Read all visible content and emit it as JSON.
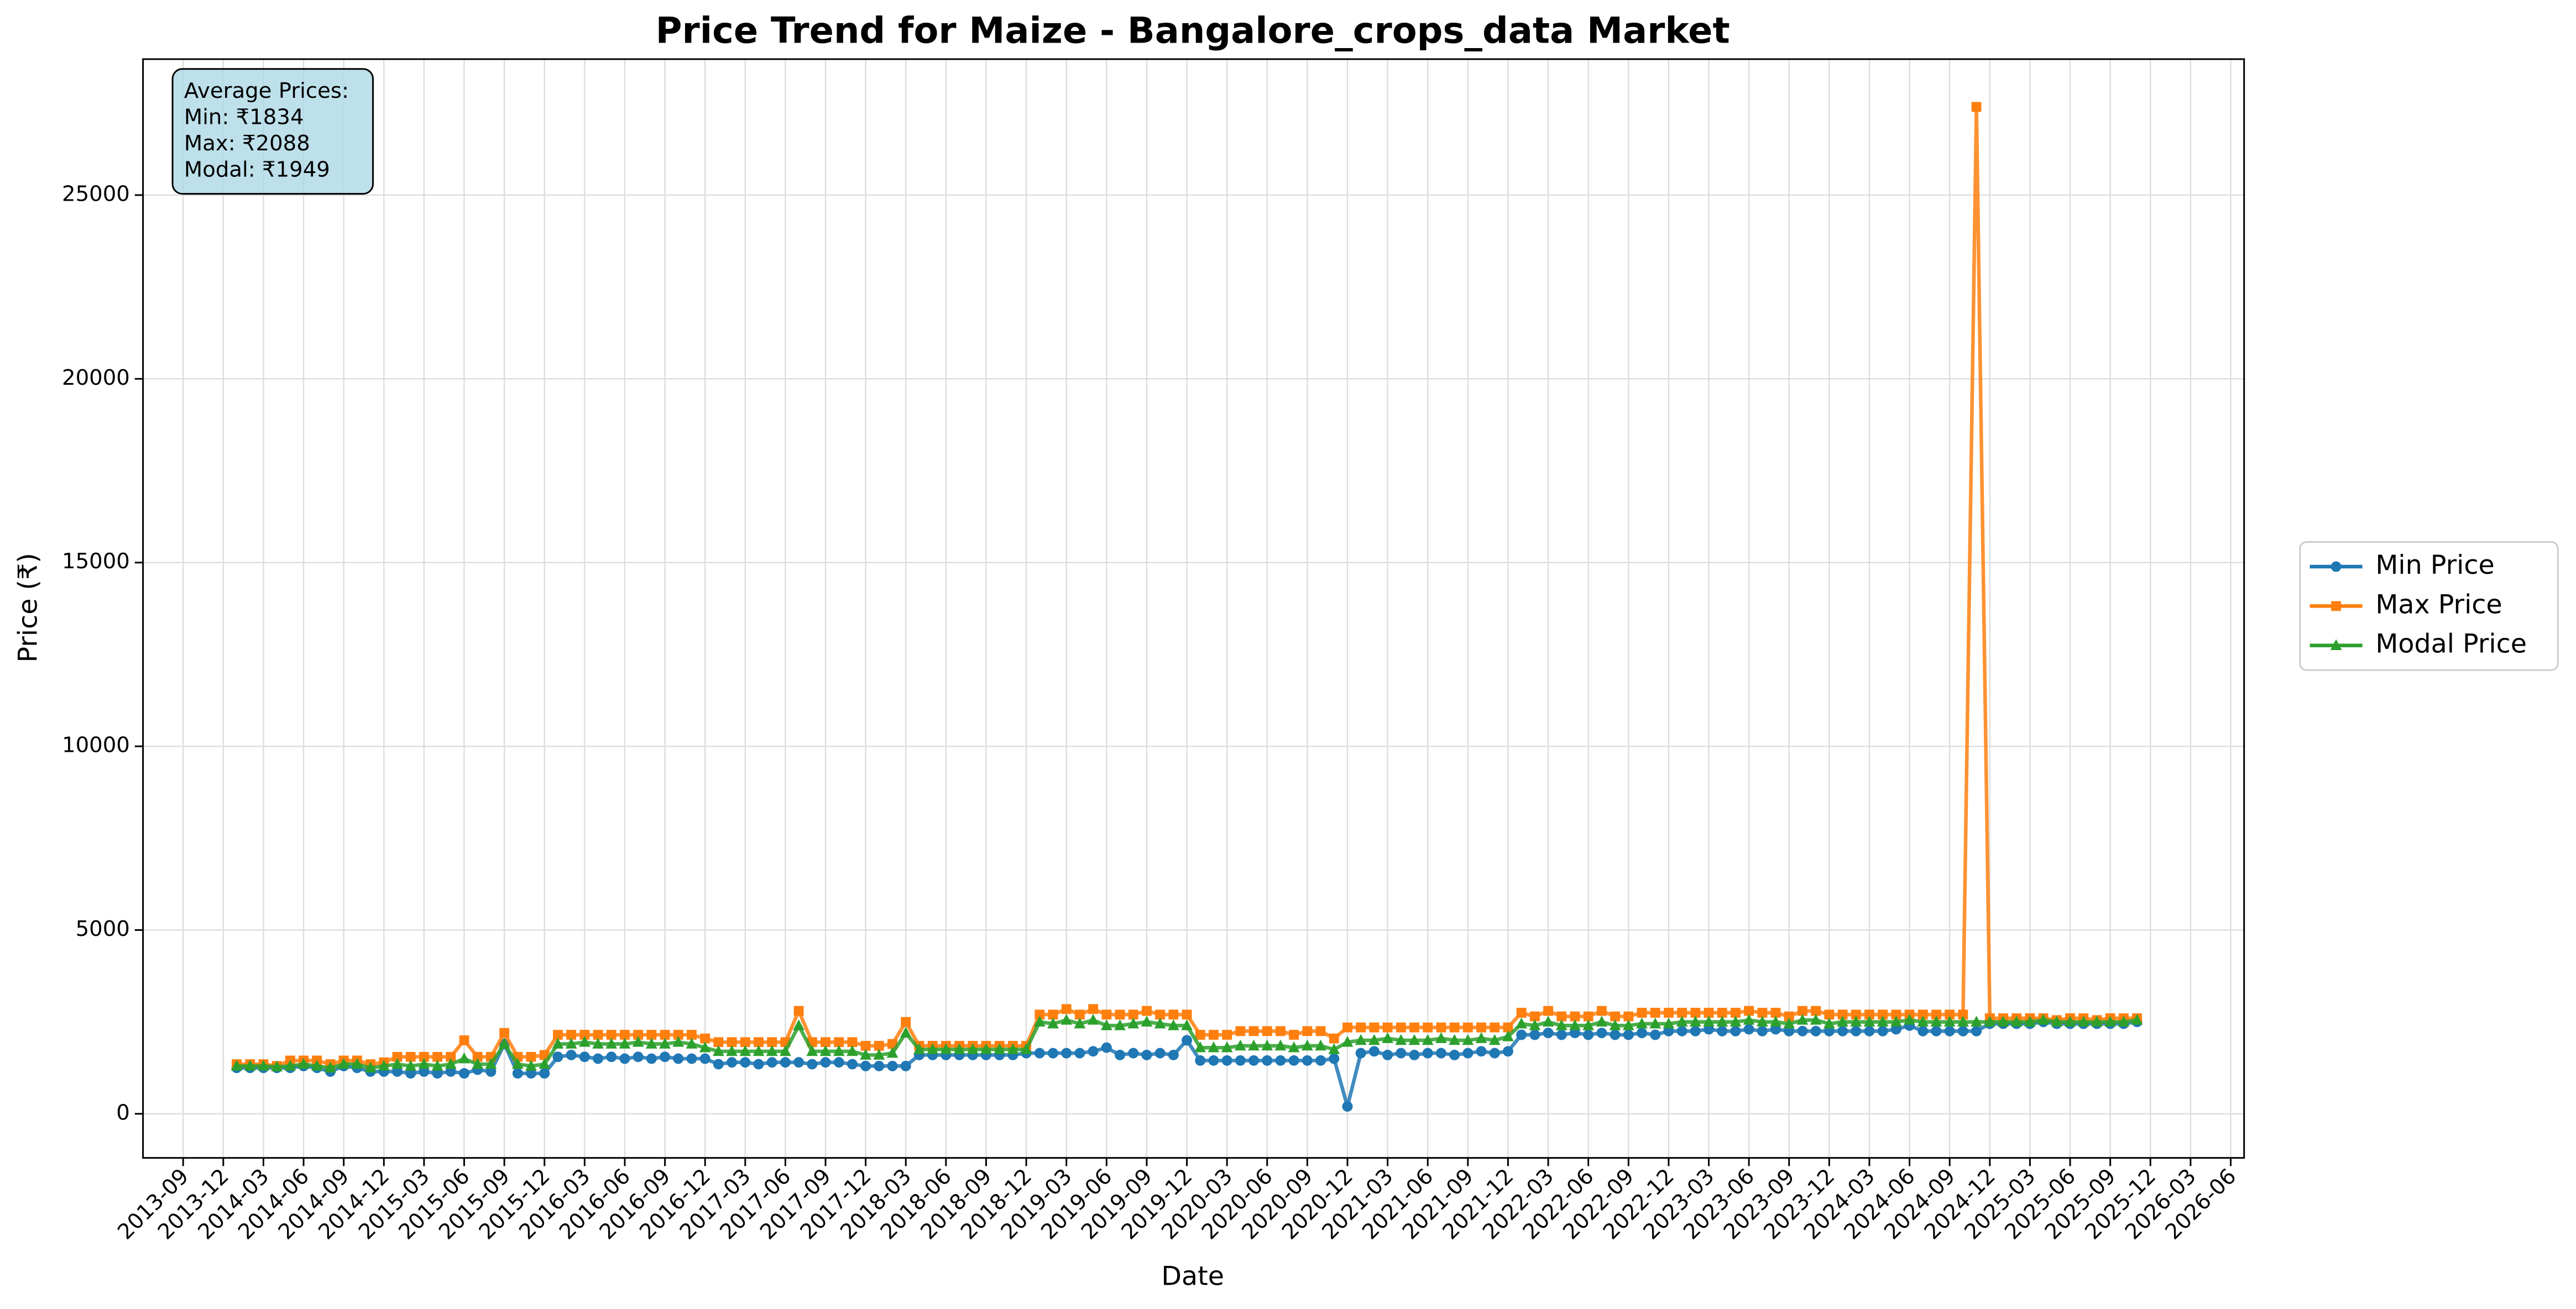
{
  "chart_data": {
    "type": "line",
    "title": "Price Trend for Maize - Bangalore_crops_data Market",
    "xlabel": "Date",
    "ylabel": "Price (₹)",
    "annotation": [
      "Average Prices:",
      "Min: ₹1834",
      "Max: ₹2088",
      "Modal: ₹1949"
    ],
    "legend": "outside right",
    "grid": true,
    "x": [
      "2014-01",
      "2014-02",
      "2014-03",
      "2014-04",
      "2014-05",
      "2014-06",
      "2014-07",
      "2014-08",
      "2014-09",
      "2014-10",
      "2014-11",
      "2014-12",
      "2015-01",
      "2015-02",
      "2015-03",
      "2015-04",
      "2015-05",
      "2015-06",
      "2015-07",
      "2015-08",
      "2015-09",
      "2015-10",
      "2015-11",
      "2015-12",
      "2016-01",
      "2016-02",
      "2016-03",
      "2016-04",
      "2016-05",
      "2016-06",
      "2016-07",
      "2016-08",
      "2016-09",
      "2016-10",
      "2016-11",
      "2016-12",
      "2017-01",
      "2017-02",
      "2017-03",
      "2017-04",
      "2017-05",
      "2017-06",
      "2017-07",
      "2017-08",
      "2017-09",
      "2017-10",
      "2017-11",
      "2017-12",
      "2018-01",
      "2018-02",
      "2018-03",
      "2018-04",
      "2018-05",
      "2018-06",
      "2018-07",
      "2018-08",
      "2018-09",
      "2018-10",
      "2018-11",
      "2018-12",
      "2019-01",
      "2019-02",
      "2019-03",
      "2019-04",
      "2019-05",
      "2019-06",
      "2019-07",
      "2019-08",
      "2019-09",
      "2019-10",
      "2019-11",
      "2019-12",
      "2020-01",
      "2020-02",
      "2020-03",
      "2020-04",
      "2020-05",
      "2020-06",
      "2020-07",
      "2020-08",
      "2020-09",
      "2020-10",
      "2020-11",
      "2020-12",
      "2021-01",
      "2021-02",
      "2021-03",
      "2021-04",
      "2021-05",
      "2021-06",
      "2021-07",
      "2021-08",
      "2021-09",
      "2021-10",
      "2021-11",
      "2021-12",
      "2022-01",
      "2022-02",
      "2022-03",
      "2022-04",
      "2022-05",
      "2022-06",
      "2022-07",
      "2022-08",
      "2022-09",
      "2022-10",
      "2022-11",
      "2022-12",
      "2023-01",
      "2023-02",
      "2023-03",
      "2023-04",
      "2023-05",
      "2023-06",
      "2023-07",
      "2023-08",
      "2023-09",
      "2023-10",
      "2023-11",
      "2023-12",
      "2024-01",
      "2024-02",
      "2024-03",
      "2024-04",
      "2024-05",
      "2024-06",
      "2024-07",
      "2024-08",
      "2024-09",
      "2024-10",
      "2024-11",
      "2024-12",
      "2025-01",
      "2025-02",
      "2025-03",
      "2025-04",
      "2025-05",
      "2025-06",
      "2025-07",
      "2025-08",
      "2025-09",
      "2025-10",
      "2025-11"
    ],
    "series": [
      {
        "name": "Min Price",
        "color": "#1f77b4",
        "marker": "circle",
        "values": [
          1250,
          1250,
          1250,
          1250,
          1250,
          1300,
          1250,
          1150,
          1300,
          1250,
          1150,
          1150,
          1150,
          1100,
          1150,
          1100,
          1150,
          1100,
          1200,
          1150,
          1900,
          1100,
          1100,
          1100,
          1550,
          1600,
          1550,
          1500,
          1550,
          1500,
          1550,
          1500,
          1550,
          1500,
          1500,
          1500,
          1350,
          1400,
          1400,
          1350,
          1400,
          1400,
          1400,
          1350,
          1400,
          1400,
          1350,
          1300,
          1300,
          1300,
          1300,
          1600,
          1600,
          1600,
          1600,
          1600,
          1600,
          1600,
          1600,
          1650,
          1650,
          1650,
          1650,
          1650,
          1700,
          1800,
          1600,
          1650,
          1600,
          1650,
          1600,
          2000,
          1450,
          1450,
          1450,
          1450,
          1450,
          1450,
          1450,
          1450,
          1450,
          1450,
          1500,
          200,
          1650,
          1700,
          1600,
          1650,
          1600,
          1650,
          1650,
          1600,
          1650,
          1700,
          1650,
          1700,
          2150,
          2150,
          2200,
          2150,
          2200,
          2150,
          2200,
          2150,
          2150,
          2200,
          2150,
          2250,
          2250,
          2250,
          2300,
          2250,
          2250,
          2300,
          2250,
          2300,
          2250,
          2250,
          2250,
          2250,
          2250,
          2250,
          2250,
          2250,
          2300,
          2400,
          2250,
          2250,
          2250,
          2250,
          2250,
          2450,
          2450,
          2450,
          2450,
          2500,
          2450,
          2450,
          2450,
          2450,
          2450,
          2450,
          2500
        ]
      },
      {
        "name": "Max Price",
        "color": "#ff7f0e",
        "marker": "square",
        "values": [
          1350,
          1350,
          1350,
          1300,
          1450,
          1450,
          1450,
          1350,
          1450,
          1450,
          1350,
          1400,
          1550,
          1550,
          1550,
          1550,
          1550,
          2000,
          1550,
          1550,
          2200,
          1550,
          1550,
          1600,
          2150,
          2150,
          2150,
          2150,
          2150,
          2150,
          2150,
          2150,
          2150,
          2150,
          2150,
          2050,
          1950,
          1950,
          1950,
          1950,
          1950,
          1950,
          2800,
          1950,
          1950,
          1950,
          1950,
          1850,
          1850,
          1900,
          2500,
          1850,
          1850,
          1850,
          1850,
          1850,
          1850,
          1850,
          1850,
          1850,
          2700,
          2700,
          2850,
          2700,
          2850,
          2700,
          2700,
          2700,
          2800,
          2700,
          2700,
          2700,
          2150,
          2150,
          2150,
          2250,
          2250,
          2250,
          2250,
          2150,
          2250,
          2250,
          2050,
          2350,
          2350,
          2350,
          2350,
          2350,
          2350,
          2350,
          2350,
          2350,
          2350,
          2350,
          2350,
          2350,
          2750,
          2650,
          2800,
          2650,
          2650,
          2650,
          2800,
          2650,
          2650,
          2750,
          2750,
          2750,
          2750,
          2750,
          2750,
          2750,
          2750,
          2800,
          2750,
          2750,
          2650,
          2800,
          2800,
          2700,
          2700,
          2700,
          2700,
          2700,
          2700,
          2700,
          2700,
          2700,
          2700,
          2700,
          27400,
          2600,
          2600,
          2600,
          2600,
          2600,
          2550,
          2600,
          2600,
          2550,
          2600,
          2600,
          2600
        ]
      },
      {
        "name": "Modal Price",
        "color": "#2ca02c",
        "marker": "triangle",
        "values": [
          1300,
          1300,
          1300,
          1280,
          1300,
          1350,
          1300,
          1250,
          1350,
          1350,
          1250,
          1300,
          1350,
          1300,
          1350,
          1300,
          1350,
          1500,
          1350,
          1350,
          1900,
          1350,
          1300,
          1350,
          1900,
          1900,
          1950,
          1900,
          1900,
          1900,
          1950,
          1900,
          1900,
          1950,
          1900,
          1800,
          1700,
          1700,
          1700,
          1700,
          1700,
          1700,
          2400,
          1700,
          1700,
          1700,
          1700,
          1600,
          1600,
          1650,
          2200,
          1750,
          1750,
          1750,
          1750,
          1750,
          1750,
          1750,
          1750,
          1750,
          2500,
          2450,
          2550,
          2450,
          2550,
          2400,
          2400,
          2450,
          2500,
          2450,
          2400,
          2400,
          1800,
          1800,
          1800,
          1850,
          1850,
          1850,
          1850,
          1800,
          1850,
          1850,
          1750,
          1950,
          2000,
          2000,
          2050,
          2000,
          2000,
          2000,
          2050,
          2000,
          2000,
          2050,
          2000,
          2100,
          2450,
          2400,
          2500,
          2400,
          2400,
          2400,
          2500,
          2400,
          2400,
          2450,
          2450,
          2450,
          2500,
          2500,
          2500,
          2500,
          2500,
          2550,
          2500,
          2500,
          2450,
          2550,
          2550,
          2450,
          2500,
          2500,
          2500,
          2500,
          2500,
          2550,
          2500,
          2500,
          2500,
          2500,
          2500,
          2500,
          2500,
          2500,
          2500,
          2550,
          2500,
          2500,
          2500,
          2500,
          2500,
          2500,
          2550
        ]
      }
    ],
    "xlim": [
      "2013-06",
      "2026-07"
    ],
    "xticks": [
      "2013-09",
      "2013-12",
      "2014-03",
      "2014-06",
      "2014-09",
      "2014-12",
      "2015-03",
      "2015-06",
      "2015-09",
      "2015-12",
      "2016-03",
      "2016-06",
      "2016-09",
      "2016-12",
      "2017-03",
      "2017-06",
      "2017-09",
      "2017-12",
      "2018-03",
      "2018-06",
      "2018-09",
      "2018-12",
      "2019-03",
      "2019-06",
      "2019-09",
      "2019-12",
      "2020-03",
      "2020-06",
      "2020-09",
      "2020-12",
      "2021-03",
      "2021-06",
      "2021-09",
      "2021-12",
      "2022-03",
      "2022-06",
      "2022-09",
      "2022-12",
      "2023-03",
      "2023-06",
      "2023-09",
      "2023-12",
      "2024-03",
      "2024-06",
      "2024-09",
      "2024-12",
      "2025-03",
      "2025-06",
      "2025-09",
      "2025-12",
      "2026-03",
      "2026-06"
    ],
    "ylim": [
      -1200,
      28700
    ],
    "yticks": [
      0,
      5000,
      10000,
      15000,
      20000,
      25000
    ]
  }
}
